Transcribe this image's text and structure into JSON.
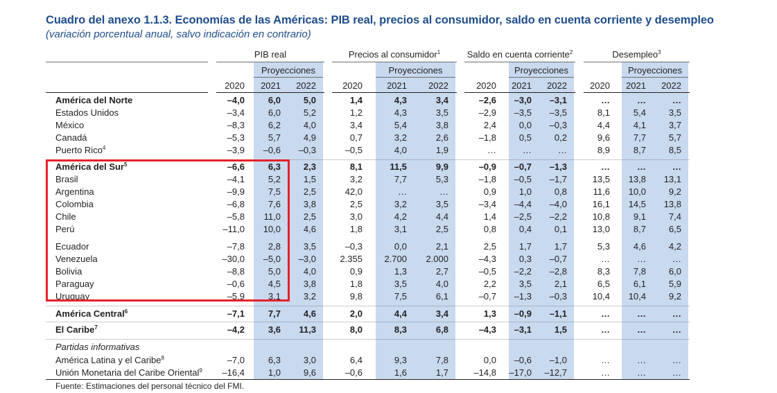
{
  "title": "Cuadro del anexo 1.1.3. Economías de las Américas: PIB real, precios al consumidor, saldo en cuenta corriente y desempleo",
  "subtitle": "(variación porcentual anual, salvo indicación en contrario)",
  "groups": [
    {
      "label": "PIB real",
      "sup": ""
    },
    {
      "label": "Precios al consumidor",
      "sup": "1"
    },
    {
      "label": "Saldo en cuenta corriente",
      "sup": "2"
    },
    {
      "label": "Desempleo",
      "sup": "3"
    }
  ],
  "proyecciones_label": "Proyecciones",
  "years": [
    "2020",
    "2021",
    "2022"
  ],
  "rows": [
    {
      "label": "América del Norte",
      "sup": "",
      "bold": true,
      "values": [
        "–4,0",
        "6,0",
        "5,0",
        "1,4",
        "4,3",
        "3,4",
        "–2,6",
        "–3,0",
        "–3,1",
        "…",
        "…",
        "…"
      ]
    },
    {
      "label": "Estados Unidos",
      "sup": "",
      "bold": false,
      "values": [
        "–3,4",
        "6,0",
        "5,2",
        "1,2",
        "4,3",
        "3,5",
        "–2,9",
        "–3,5",
        "–3,5",
        "8,1",
        "5,4",
        "3,5"
      ]
    },
    {
      "label": "México",
      "sup": "",
      "bold": false,
      "values": [
        "–8,3",
        "6,2",
        "4,0",
        "3,4",
        "5,4",
        "3,8",
        "2,4",
        "0,0",
        "–0,3",
        "4,4",
        "4,1",
        "3,7"
      ]
    },
    {
      "label": "Canadá",
      "sup": "",
      "bold": false,
      "values": [
        "–5,3",
        "5,7",
        "4,9",
        "0,7",
        "3,2",
        "2,6",
        "–1,8",
        "0,5",
        "0,2",
        "9,6",
        "7,7",
        "5,7"
      ]
    },
    {
      "label": "Puerto Rico",
      "sup": "4",
      "bold": false,
      "values": [
        "–3,9",
        "–0,6",
        "–0,3",
        "–0,5",
        "4,0",
        "1,9",
        "…",
        "…",
        "…",
        "8,9",
        "8,7",
        "8,5"
      ]
    },
    {
      "label": "América del Sur",
      "sup": "5",
      "bold": true,
      "values": [
        "–6,6",
        "6,3",
        "2,3",
        "8,1",
        "11,5",
        "9,9",
        "–0,9",
        "–0,7",
        "–1,3",
        "…",
        "…",
        "…"
      ]
    },
    {
      "label": "Brasil",
      "sup": "",
      "bold": false,
      "values": [
        "–4,1",
        "5,2",
        "1,5",
        "3,2",
        "7,7",
        "5,3",
        "–1,8",
        "–0,5",
        "–1,7",
        "13,5",
        "13,8",
        "13,1"
      ]
    },
    {
      "label": "Argentina",
      "sup": "",
      "bold": false,
      "values": [
        "–9,9",
        "7,5",
        "2,5",
        "42,0",
        "…",
        "…",
        "0,9",
        "1,0",
        "0,8",
        "11,6",
        "10,0",
        "9,2"
      ]
    },
    {
      "label": "Colombia",
      "sup": "",
      "bold": false,
      "values": [
        "–6,8",
        "7,6",
        "3,8",
        "2,5",
        "3,2",
        "3,5",
        "–3,4",
        "–4,4",
        "–4,0",
        "16,1",
        "14,5",
        "13,8"
      ]
    },
    {
      "label": "Chile",
      "sup": "",
      "bold": false,
      "values": [
        "–5,8",
        "11,0",
        "2,5",
        "3,0",
        "4,2",
        "4,4",
        "1,4",
        "–2,5",
        "–2,2",
        "10,8",
        "9,1",
        "7,4"
      ]
    },
    {
      "label": "Perú",
      "sup": "",
      "bold": false,
      "values": [
        "–11,0",
        "10,0",
        "4,6",
        "1,8",
        "3,1",
        "2,5",
        "0,8",
        "0,4",
        "0,1",
        "13,0",
        "8,7",
        "6,5"
      ]
    },
    {
      "label": "Ecuador",
      "sup": "",
      "bold": false,
      "values": [
        "–7,8",
        "2,8",
        "3,5",
        "–0,3",
        "0,0",
        "2,1",
        "2,5",
        "1,7",
        "1,7",
        "5,3",
        "4,6",
        "4,2"
      ]
    },
    {
      "label": "Venezuela",
      "sup": "",
      "bold": false,
      "values": [
        "–30,0",
        "–5,0",
        "–3,0",
        "2.355",
        "2.700",
        "2.000",
        "–4,3",
        "0,3",
        "–0,7",
        "…",
        "…",
        "…"
      ]
    },
    {
      "label": "Bolivia",
      "sup": "",
      "bold": false,
      "values": [
        "–8,8",
        "5,0",
        "4,0",
        "0,9",
        "1,3",
        "2,7",
        "–0,5",
        "–2,2",
        "–2,8",
        "8,3",
        "7,8",
        "6,0"
      ]
    },
    {
      "label": "Paraguay",
      "sup": "",
      "bold": false,
      "values": [
        "–0,6",
        "4,5",
        "3,8",
        "1,8",
        "3,5",
        "4,0",
        "2,2",
        "3,5",
        "2,1",
        "6,5",
        "6,1",
        "5,9"
      ]
    },
    {
      "label": "Uruguay",
      "sup": "",
      "bold": false,
      "values": [
        "–5,9",
        "3,1",
        "3,2",
        "9,8",
        "7,5",
        "6,1",
        "–0,7",
        "–1,3",
        "–0,3",
        "10,4",
        "10,4",
        "9,2"
      ]
    },
    {
      "label": "América Central",
      "sup": "6",
      "bold": true,
      "values": [
        "–7,1",
        "7,7",
        "4,6",
        "2,0",
        "4,4",
        "3,4",
        "1,3",
        "–0,9",
        "–1,1",
        "…",
        "…",
        "…"
      ]
    },
    {
      "label": "El Caribe",
      "sup": "7",
      "bold": true,
      "values": [
        "–4,2",
        "3,6",
        "11,3",
        "8,0",
        "8,3",
        "6,8",
        "–4,3",
        "–3,1",
        "1,5",
        "…",
        "…",
        "…"
      ]
    },
    {
      "label": "Partidas informativas",
      "sup": "",
      "bold": false,
      "italic": true,
      "values": []
    },
    {
      "label": "América Latina y el Caribe",
      "sup": "8",
      "bold": false,
      "values": [
        "–7,0",
        "6,3",
        "3,0",
        "6,4",
        "9,3",
        "7,8",
        "0,0",
        "–0,6",
        "–1,0",
        "…",
        "…",
        "…"
      ]
    },
    {
      "label": "Unión Monetaria del Caribe Oriental",
      "sup": "9",
      "bold": false,
      "values": [
        "–16,4",
        "1,0",
        "9,6",
        "–0,6",
        "1,6",
        "1,7",
        "–14,8",
        "–17,0",
        "–12,7",
        "…",
        "…",
        "…"
      ]
    }
  ],
  "source": "Fuente: Estimaciones del personal técnico del FMI.",
  "colors": {
    "title": "#1f4e8c",
    "projection_band": "#c9d9ee",
    "highlight": "#e3222b"
  }
}
